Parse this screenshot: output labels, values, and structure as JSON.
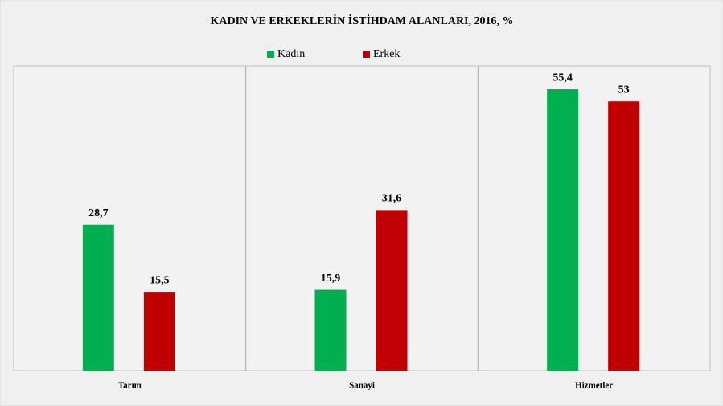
{
  "chart_data": {
    "type": "bar",
    "title": "KADIN VE ERKEKLERİN İSTİHDAM ALANLARI, 2016, %",
    "categories": [
      "Tarım",
      "Sanayi",
      "Hizmetler"
    ],
    "series": [
      {
        "name": "Kadın",
        "color": "#00b050",
        "values": [
          28.7,
          15.9,
          55.4
        ],
        "value_labels": [
          "28,7",
          "15,9",
          "55,4"
        ]
      },
      {
        "name": "Erkek",
        "color": "#c00000",
        "values": [
          15.5,
          31.6,
          53
        ],
        "value_labels": [
          "15,5",
          "31,6",
          "53"
        ]
      }
    ],
    "ylim": [
      0,
      60
    ]
  }
}
